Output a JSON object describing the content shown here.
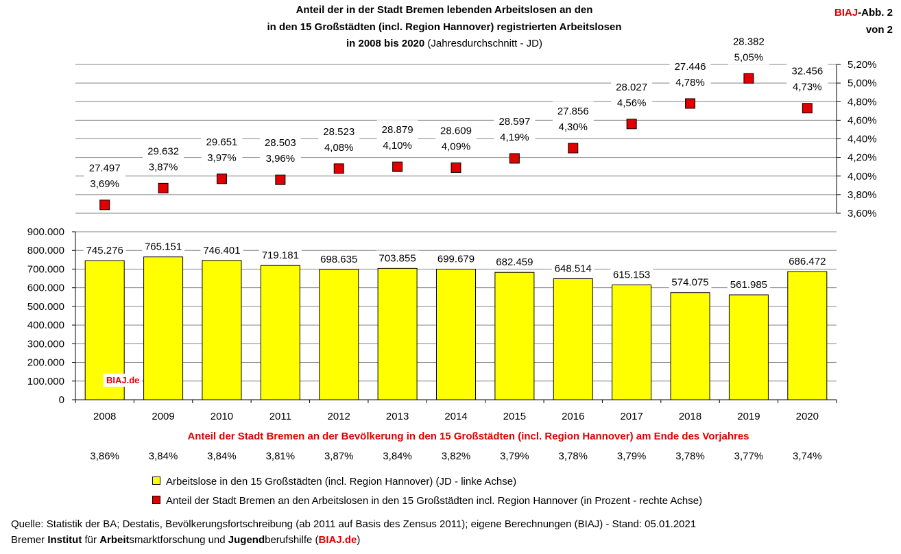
{
  "header": {
    "title_line1": "Anteil der in der Stadt Bremen lebenden Arbeitslosen an den",
    "title_line2": "in den 15 Großstädten (incl. Region Hannover) registrierten Arbeitslosen",
    "title_line3_bold": "in 2008 bis 2020",
    "title_line3_normal": "(Jahresdurchschnitt - JD)",
    "badge_red": "BIAJ",
    "badge_black": "-Abb. 2",
    "badge_line2": "von 2"
  },
  "chart_data": {
    "type": "bar",
    "categories": [
      "2008",
      "2009",
      "2010",
      "2011",
      "2012",
      "2013",
      "2014",
      "2015",
      "2016",
      "2017",
      "2018",
      "2019",
      "2020"
    ],
    "series": [
      {
        "name": "Arbeitslose in den 15 Großstädten (incl. Region Hannover) (JD - linke Achse)",
        "type": "bar",
        "axis": "left",
        "color": "#ffff00",
        "values": [
          745276,
          765151,
          746401,
          719181,
          698635,
          703855,
          699679,
          682459,
          648514,
          615153,
          574075,
          561985,
          686472
        ],
        "labels": [
          "745.276",
          "765.151",
          "746.401",
          "719.181",
          "698.635",
          "703.855",
          "699.679",
          "682.459",
          "648.514",
          "615.153",
          "574.075",
          "561.985",
          "686.472"
        ]
      },
      {
        "name": "Anteil der Stadt Bremen an den Arbeitslosen in den 15 Großstädten incl. Region Hannover (in Prozent - rechte Achse)",
        "type": "scatter",
        "axis": "right",
        "color": "#e00000",
        "values": [
          3.69,
          3.87,
          3.97,
          3.96,
          4.08,
          4.1,
          4.09,
          4.19,
          4.3,
          4.56,
          4.78,
          5.05,
          4.73
        ],
        "count_labels": [
          "27.497",
          "29.632",
          "29.651",
          "28.503",
          "28.523",
          "28.879",
          "28.609",
          "28.597",
          "27.856",
          "28.027",
          "27.446",
          "28.382",
          "32.456"
        ],
        "pct_labels": [
          "3,69%",
          "3,87%",
          "3,97%",
          "3,96%",
          "4,08%",
          "4,10%",
          "4,09%",
          "4,19%",
          "4,30%",
          "4,56%",
          "4,78%",
          "5,05%",
          "4,73%"
        ]
      }
    ],
    "left_axis": {
      "ylim": [
        0,
        900000
      ],
      "ticks": [
        0,
        100000,
        200000,
        300000,
        400000,
        500000,
        600000,
        700000,
        800000,
        900000
      ],
      "tick_labels": [
        "0",
        "100.000",
        "200.000",
        "300.000",
        "400.000",
        "500.000",
        "600.000",
        "700.000",
        "800.000",
        "900.000"
      ]
    },
    "right_axis": {
      "ylim": [
        3.6,
        5.2
      ],
      "ticks": [
        3.6,
        3.8,
        4.0,
        4.2,
        4.4,
        4.6,
        4.8,
        5.0,
        5.2
      ],
      "tick_labels": [
        "3,60%",
        "3,80%",
        "4,00%",
        "4,20%",
        "4,40%",
        "4,60%",
        "4,80%",
        "5,00%",
        "5,20%"
      ]
    },
    "grid": true
  },
  "population_share": {
    "heading": "Anteil der Stadt Bremen an der Bevölkerung in den 15 Großstädten (incl. Region Hannover) am Ende des Vorjahres",
    "values": [
      "3,86%",
      "3,84%",
      "3,84%",
      "3,81%",
      "3,87%",
      "3,84%",
      "3,82%",
      "3,79%",
      "3,78%",
      "3,79%",
      "3,78%",
      "3,77%",
      "3,74%"
    ]
  },
  "legend": {
    "bar_label": "Arbeitslose in den 15 Großstädten (incl. Region Hannover) (JD - linke Achse)",
    "marker_label": "Anteil der Stadt Bremen an den Arbeitslosen in den 15 Großstädten incl. Region Hannover (in Prozent - rechte Achse)"
  },
  "footer": {
    "source": "Quelle: Statistik der BA; Destatis, Bevölkerungsfortschreibung (ab 2011 auf Basis des Zensus 2011); eigene Berechnungen (BIAJ) - Stand: 05.01.2021",
    "inst_1": "Bremer ",
    "inst_2": "Institut",
    "inst_3": " für ",
    "inst_4": "Arbeit",
    "inst_5": "smarktforschung und ",
    "inst_6": "Jugend",
    "inst_7": "berufshilfe (",
    "inst_8": "BIAJ.de",
    "inst_9": ")"
  },
  "watermark": "BIAJ.de"
}
